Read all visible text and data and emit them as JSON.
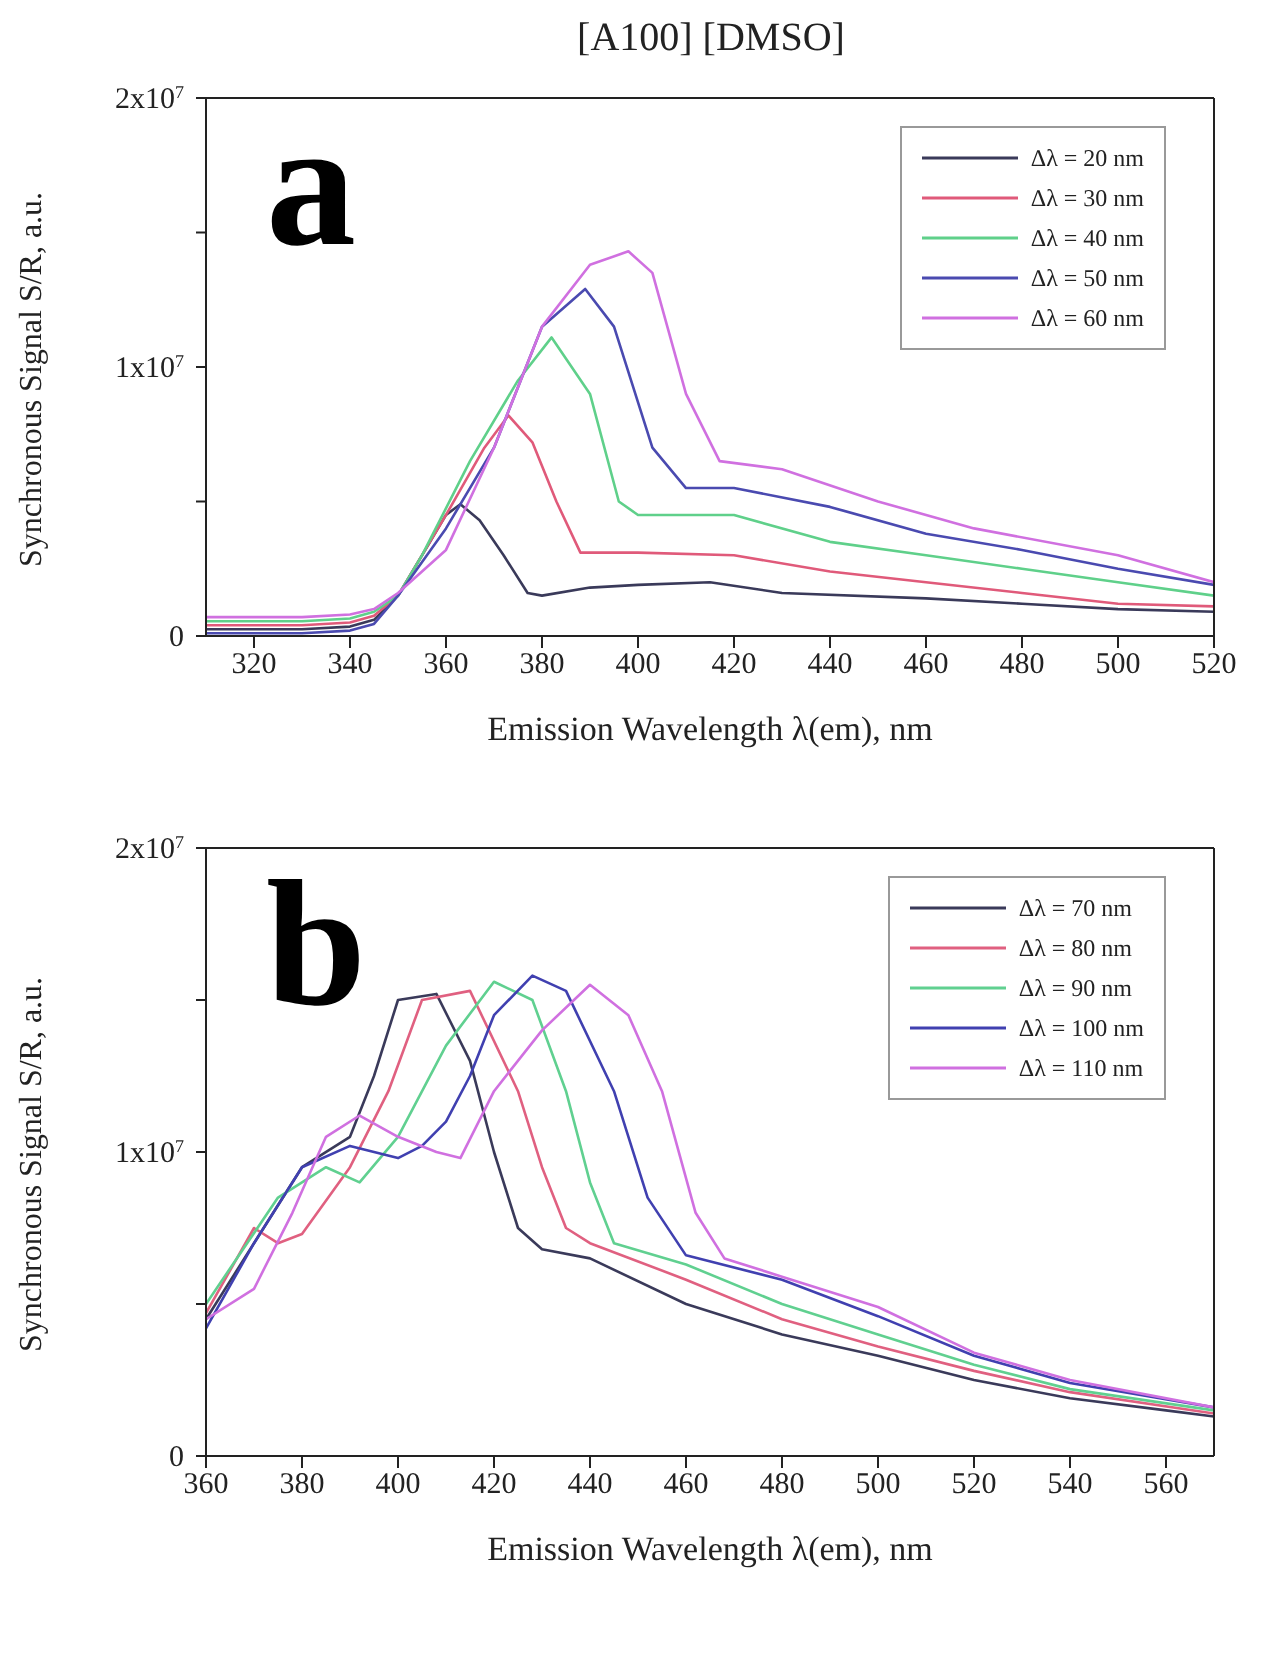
{
  "chart_data": [
    {
      "type": "line",
      "title": "[A100] [DMSO]",
      "xlabel": "Emission Wavelength λ(em), nm",
      "ylabel": "Synchronous Signal S/R, a.u.",
      "annotations": [
        "a"
      ],
      "legend": "top right",
      "xlim": [
        310,
        520
      ],
      "xticks": [
        320,
        340,
        360,
        380,
        400,
        420,
        440,
        460,
        480,
        500,
        520
      ],
      "ylim": [
        0,
        20000000
      ],
      "yticks": [
        0,
        {
          "value": 5000000,
          "label": null
        },
        {
          "value": 10000000,
          "label": "1x10$^{7}$"
        },
        {
          "value": 15000000,
          "label": null
        },
        {
          "value": 20000000,
          "label": "2x10$^{7}$"
        }
      ],
      "series": [
        {
          "name": "Δλ = 20 nm",
          "color": "#3a3a5a",
          "x": [
            310,
            330,
            340,
            345,
            350,
            355,
            360,
            363,
            367,
            372,
            377,
            380,
            390,
            400,
            415,
            430,
            460,
            480,
            500,
            520
          ],
          "values": [
            250000,
            250000,
            350000,
            600000,
            1500000,
            3000000,
            4500000,
            4900000,
            4300000,
            3000000,
            1600000,
            1500000,
            1800000,
            1900000,
            2000000,
            1600000,
            1400000,
            1200000,
            1000000,
            900000
          ]
        },
        {
          "name": "Δλ = 30 nm",
          "color": "#e05a7a",
          "x": [
            310,
            330,
            340,
            345,
            350,
            360,
            368,
            373,
            378,
            383,
            388,
            400,
            420,
            440,
            460,
            480,
            500,
            520
          ],
          "values": [
            400000,
            400000,
            500000,
            750000,
            1500000,
            4500000,
            7000000,
            8200000,
            7200000,
            5000000,
            3100000,
            3100000,
            3000000,
            2400000,
            2000000,
            1600000,
            1200000,
            1100000
          ]
        },
        {
          "name": "Δλ = 40 nm",
          "color": "#5fd08a",
          "x": [
            310,
            330,
            340,
            345,
            350,
            355,
            365,
            375,
            382,
            390,
            396,
            400,
            420,
            440,
            460,
            480,
            500,
            520
          ],
          "values": [
            550000,
            550000,
            650000,
            900000,
            1500000,
            3000000,
            6500000,
            9500000,
            11100000,
            9000000,
            5000000,
            4500000,
            4500000,
            3500000,
            3000000,
            2500000,
            2000000,
            1500000
          ]
        },
        {
          "name": "Δλ = 50 nm",
          "color": "#4a4ab0",
          "x": [
            310,
            330,
            340,
            345,
            350,
            360,
            370,
            380,
            389,
            395,
            403,
            410,
            420,
            440,
            460,
            480,
            500,
            520
          ],
          "values": [
            100000,
            100000,
            200000,
            450000,
            1500000,
            4000000,
            7000000,
            11500000,
            12900000,
            11500000,
            7000000,
            5500000,
            5500000,
            4800000,
            3800000,
            3200000,
            2500000,
            1900000
          ]
        },
        {
          "name": "Δλ = 60 nm",
          "color": "#d070e0",
          "x": [
            310,
            330,
            340,
            345,
            350,
            360,
            370,
            380,
            390,
            398,
            403,
            410,
            417,
            430,
            450,
            470,
            500,
            520
          ],
          "values": [
            700000,
            700000,
            800000,
            1000000,
            1600000,
            3200000,
            7000000,
            11500000,
            13800000,
            14300000,
            13500000,
            9000000,
            6500000,
            6200000,
            5000000,
            4000000,
            3000000,
            2000000
          ]
        }
      ]
    },
    {
      "type": "line",
      "xlabel": "Emission Wavelength λ(em), nm",
      "ylabel": "Synchronous Signal S/R, a.u.",
      "annotations": [
        "b"
      ],
      "legend": "top right",
      "xlim": [
        360,
        570
      ],
      "xticks": [
        360,
        380,
        400,
        420,
        440,
        460,
        480,
        500,
        520,
        540,
        560
      ],
      "ylim": [
        0,
        20000000
      ],
      "yticks": [
        0,
        {
          "value": 5000000,
          "label": null
        },
        {
          "value": 10000000,
          "label": "1x10$^{7}$"
        },
        {
          "value": 15000000,
          "label": null
        },
        {
          "value": 20000000,
          "label": "2x10$^{7}$"
        }
      ],
      "series": [
        {
          "name": "Δλ = 70 nm",
          "color": "#3a3a5a",
          "x": [
            360,
            370,
            380,
            390,
            395,
            400,
            408,
            415,
            420,
            425,
            430,
            440,
            460,
            480,
            500,
            520,
            540,
            560,
            570
          ],
          "values": [
            4500000,
            7000000,
            9500000,
            10500000,
            12500000,
            15000000,
            15200000,
            13000000,
            10000000,
            7500000,
            6800000,
            6500000,
            5000000,
            4000000,
            3300000,
            2500000,
            1900000,
            1500000,
            1300000
          ]
        },
        {
          "name": "Δλ = 80 nm",
          "color": "#e06080",
          "x": [
            360,
            370,
            375,
            380,
            390,
            398,
            405,
            415,
            425,
            430,
            435,
            440,
            460,
            480,
            500,
            520,
            540,
            570
          ],
          "values": [
            4700000,
            7500000,
            7000000,
            7300000,
            9500000,
            12000000,
            15000000,
            15300000,
            12000000,
            9500000,
            7500000,
            7000000,
            5800000,
            4500000,
            3600000,
            2800000,
            2100000,
            1400000
          ]
        },
        {
          "name": "Δλ = 90 nm",
          "color": "#60d090",
          "x": [
            360,
            375,
            385,
            392,
            400,
            410,
            420,
            428,
            435,
            440,
            445,
            460,
            480,
            500,
            520,
            540,
            570
          ],
          "values": [
            5000000,
            8500000,
            9500000,
            9000000,
            10500000,
            13500000,
            15600000,
            15000000,
            12000000,
            9000000,
            7000000,
            6300000,
            5000000,
            4000000,
            3000000,
            2200000,
            1500000
          ]
        },
        {
          "name": "Δλ = 100 nm",
          "color": "#4040b0",
          "x": [
            360,
            370,
            380,
            390,
            400,
            405,
            410,
            415,
            420,
            428,
            435,
            445,
            452,
            460,
            480,
            500,
            520,
            540,
            570
          ],
          "values": [
            4200000,
            7000000,
            9500000,
            10200000,
            9800000,
            10200000,
            11000000,
            12500000,
            14500000,
            15800000,
            15300000,
            12000000,
            8500000,
            6600000,
            5800000,
            4600000,
            3300000,
            2400000,
            1600000
          ]
        },
        {
          "name": "Δλ = 110 nm",
          "color": "#d070e0",
          "x": [
            360,
            370,
            378,
            385,
            392,
            400,
            408,
            413,
            420,
            430,
            440,
            448,
            455,
            462,
            468,
            480,
            500,
            520,
            540,
            570
          ],
          "values": [
            4500000,
            5500000,
            8000000,
            10500000,
            11200000,
            10500000,
            10000000,
            9800000,
            12000000,
            14000000,
            15500000,
            14500000,
            12000000,
            8000000,
            6500000,
            5900000,
            4900000,
            3400000,
            2500000,
            1600000
          ]
        }
      ]
    }
  ]
}
